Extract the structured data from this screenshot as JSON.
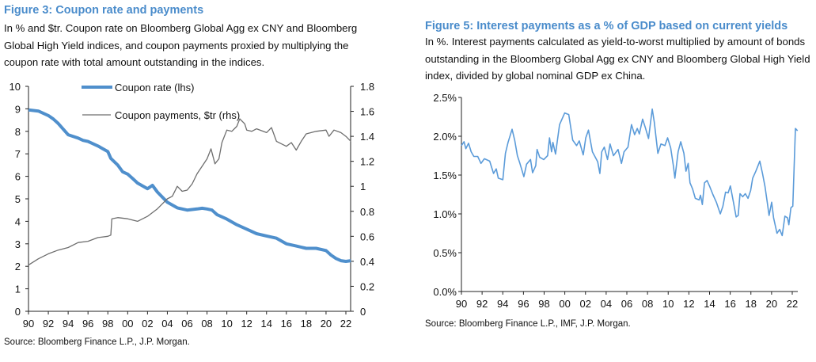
{
  "left": {
    "title": "Figure 3: Coupon rate and payments",
    "subtitle": "In % and $tr. Coupon rate on Bloomberg Global Agg ex CNY and Bloomberg Global High Yield indices, and coupon payments proxied by multiplying the coupon rate with total amount outstanding in the indices.",
    "source": "Source: Bloomberg Finance L.P., J.P. Morgan."
  },
  "right": {
    "title": "Figure 5: Interest payments as a % of GDP based on current yields",
    "subtitle": "In %. Interest payments calculated as yield-to-worst multiplied by amount of bonds outstanding in the Bloomberg Global Agg ex CNY and Bloomberg Global High Yield index, divided by global nominal GDP ex China.",
    "source": "Source: Bloomberg Finance L.P., IMF, J.P. Morgan."
  },
  "chart_data": [
    {
      "type": "line",
      "title": "Figure 3: Coupon rate and payments",
      "xlim": [
        1990,
        2022.5
      ],
      "x_ticks": [
        "90",
        "92",
        "94",
        "96",
        "98",
        "00",
        "02",
        "04",
        "06",
        "08",
        "10",
        "12",
        "14",
        "16",
        "18",
        "20",
        "22"
      ],
      "y_left": {
        "range": [
          0,
          10
        ],
        "ticks": [
          "0",
          "1",
          "2",
          "3",
          "4",
          "5",
          "6",
          "7",
          "8",
          "9",
          "10"
        ]
      },
      "y_right": {
        "range": [
          0,
          1.8
        ],
        "ticks": [
          "0",
          "0.2",
          "0.4",
          "0.6",
          "0.8",
          "1",
          "1.2",
          "1.4",
          "1.6",
          "1.8"
        ]
      },
      "legend": "top-center",
      "grid": false,
      "series": [
        {
          "name": "Coupon rate (lhs)",
          "axis": "left",
          "color": "#4f8fcc",
          "x": [
            1990,
            1991,
            1992,
            1992.5,
            1993,
            1994,
            1995,
            1995.5,
            1996,
            1997,
            1998,
            1998.3,
            1999,
            1999.5,
            2000,
            2000.5,
            2001,
            2002,
            2002.5,
            2003,
            2004,
            2005,
            2006,
            2007,
            2007.5,
            2008,
            2008.5,
            2009,
            2010,
            2011,
            2012,
            2013,
            2014,
            2015,
            2016,
            2016.5,
            2017,
            2018,
            2019,
            2020,
            2020.5,
            2021,
            2021.5,
            2022,
            2022.5
          ],
          "y": [
            8.95,
            8.9,
            8.7,
            8.55,
            8.35,
            7.85,
            7.7,
            7.6,
            7.55,
            7.35,
            7.1,
            6.8,
            6.5,
            6.2,
            6.1,
            5.9,
            5.7,
            5.45,
            5.6,
            5.3,
            4.85,
            4.6,
            4.5,
            4.55,
            4.58,
            4.55,
            4.5,
            4.3,
            4.1,
            3.85,
            3.65,
            3.45,
            3.35,
            3.25,
            3.0,
            2.95,
            2.9,
            2.8,
            2.8,
            2.7,
            2.5,
            2.35,
            2.25,
            2.22,
            2.25
          ]
        },
        {
          "name": "Coupon payments, $tr (rhs)",
          "axis": "right",
          "color": "#6e6e6e",
          "x": [
            1990,
            1991,
            1992,
            1993,
            1994,
            1995,
            1996,
            1997,
            1998,
            1998.3,
            1998.4,
            1999,
            2000,
            2001,
            2002,
            2003,
            2004,
            2004.5,
            2005,
            2005.5,
            2006,
            2006.5,
            2007,
            2008,
            2008.4,
            2008.8,
            2009.2,
            2009.5,
            2010,
            2010.5,
            2011,
            2011.3,
            2011.8,
            2012,
            2012.5,
            2013,
            2014,
            2014.5,
            2015,
            2016,
            2016.5,
            2017,
            2017.5,
            2018,
            2019,
            2020,
            2020.3,
            2020.8,
            2021.5,
            2022,
            2022.5
          ],
          "y": [
            0.37,
            0.42,
            0.46,
            0.49,
            0.51,
            0.55,
            0.56,
            0.59,
            0.6,
            0.61,
            0.74,
            0.75,
            0.74,
            0.72,
            0.76,
            0.82,
            0.9,
            0.92,
            1.0,
            0.96,
            0.97,
            1.02,
            1.1,
            1.22,
            1.3,
            1.18,
            1.22,
            1.35,
            1.45,
            1.44,
            1.48,
            1.54,
            1.5,
            1.45,
            1.44,
            1.46,
            1.43,
            1.47,
            1.36,
            1.32,
            1.35,
            1.29,
            1.36,
            1.42,
            1.44,
            1.45,
            1.4,
            1.45,
            1.43,
            1.4,
            1.36
          ]
        }
      ]
    },
    {
      "type": "line",
      "title": "Figure 5: Interest payments as a % of GDP based on current yields",
      "xlim": [
        1990,
        2022.6
      ],
      "ylim": [
        0,
        2.5
      ],
      "x_ticks": [
        "90",
        "92",
        "94",
        "96",
        "98",
        "00",
        "02",
        "04",
        "06",
        "08",
        "10",
        "12",
        "14",
        "16",
        "18",
        "20",
        "22"
      ],
      "y_ticks": [
        "0.0%",
        "0.5%",
        "1.0%",
        "1.5%",
        "2.0%",
        "2.5%"
      ],
      "grid": false,
      "series": [
        {
          "name": "Interest payments % of GDP",
          "color": "#5b9bd9",
          "x": [
            1990,
            1990.25,
            1990.43,
            1990.69,
            1990.94,
            1991.2,
            1991.58,
            1991.89,
            1992.22,
            1992.73,
            1993.11,
            1993.37,
            1993.57,
            1994,
            1994.26,
            1994.51,
            1994.9,
            1995.15,
            1995.41,
            1995.66,
            1996.04,
            1996.3,
            1996.68,
            1996.88,
            1997.19,
            1997.32,
            1997.57,
            1997.96,
            1998.34,
            1998.52,
            1998.72,
            1998.85,
            1999.1,
            1999.49,
            1999.99,
            2000.38,
            2000.76,
            2001.14,
            2001.4,
            2001.78,
            2002.03,
            2002.29,
            2002.67,
            2003.18,
            2003.39,
            2003.57,
            2003.82,
            2004.13,
            2004.38,
            2004.71,
            2005.15,
            2005.48,
            2005.73,
            2006.11,
            2006.45,
            2006.75,
            2007.01,
            2007.21,
            2007.52,
            2007.77,
            2008.1,
            2008.46,
            2008.66,
            2009,
            2009.3,
            2009.68,
            2009.94,
            2010.24,
            2010.5,
            2010.65,
            2010.96,
            2011.21,
            2011.52,
            2011.72,
            2011.93,
            2012.11,
            2012.36,
            2012.62,
            2012.99,
            2013.13,
            2013.3,
            2013.51,
            2013.76,
            2014.02,
            2014.32,
            2014.66,
            2015.04,
            2015.29,
            2015.55,
            2015.8,
            2016.01,
            2016.31,
            2016.57,
            2016.77,
            2016.95,
            2017.21,
            2017.46,
            2017.72,
            2017.97,
            2018.17,
            2018.48,
            2018.86,
            2019.12,
            2019.37,
            2019.58,
            2019.76,
            2020.01,
            2020.19,
            2020.52,
            2020.78,
            2021.03,
            2021.29,
            2021.54,
            2021.67,
            2021.87,
            2022.05,
            2022.31,
            2022.51
          ],
          "y": [
            1.88,
            1.93,
            1.84,
            1.91,
            1.8,
            1.74,
            1.74,
            1.65,
            1.71,
            1.68,
            1.52,
            1.58,
            1.46,
            1.44,
            1.78,
            1.92,
            2.09,
            1.95,
            1.75,
            1.65,
            1.48,
            1.64,
            1.7,
            1.53,
            1.62,
            1.83,
            1.73,
            1.7,
            1.75,
            1.98,
            1.8,
            1.92,
            1.77,
            2.15,
            2.3,
            2.28,
            1.95,
            1.88,
            1.94,
            1.76,
            1.98,
            2.08,
            1.8,
            1.67,
            1.52,
            1.8,
            1.86,
            1.7,
            1.9,
            1.75,
            1.83,
            1.65,
            1.8,
            1.86,
            2.15,
            2.02,
            2.1,
            2.03,
            2.22,
            2.12,
            1.97,
            2.35,
            2.18,
            1.78,
            1.9,
            1.88,
            1.98,
            1.85,
            1.62,
            1.46,
            1.8,
            1.93,
            1.78,
            1.55,
            1.65,
            1.4,
            1.32,
            1.2,
            1.18,
            1.24,
            1.12,
            1.4,
            1.43,
            1.35,
            1.25,
            1.15,
            1.0,
            1.1,
            1.28,
            1.27,
            1.36,
            1.15,
            0.96,
            0.98,
            1.26,
            1.22,
            1.26,
            1.2,
            1.3,
            1.46,
            1.55,
            1.68,
            1.52,
            1.35,
            1.15,
            0.98,
            1.15,
            0.95,
            0.75,
            0.8,
            0.72,
            0.97,
            0.95,
            0.86,
            1.08,
            1.1,
            2.1,
            2.07
          ]
        }
      ]
    }
  ]
}
